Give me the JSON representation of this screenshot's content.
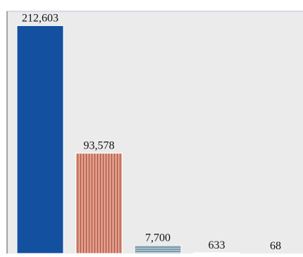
{
  "chart_data": {
    "type": "bar",
    "categories": [
      "",
      "",
      "",
      "",
      ""
    ],
    "values": [
      212603,
      93578,
      7700,
      633,
      68
    ],
    "value_labels": [
      "212,603",
      "93,578",
      "7,700",
      "633",
      "68"
    ],
    "title": "",
    "xlabel": "",
    "ylabel": "",
    "ylim": [
      0,
      226000
    ],
    "grid": false,
    "legend": "none",
    "colors": {
      "plot_background": "#ebebeb",
      "frame": "#b6c2dc",
      "axis": "#555555",
      "bar_1": "#1450a0",
      "bar_2_fill": "#dc9e8a",
      "bar_2_stripe": "#b24a3c",
      "bar_3_fill": "#7a98a8",
      "bar_3_stripe": "#c4d6e0",
      "label": "#111111"
    },
    "bar_styles": [
      "solid",
      "vertical-stripes",
      "horizontal-stripes",
      "solid",
      "solid"
    ]
  }
}
